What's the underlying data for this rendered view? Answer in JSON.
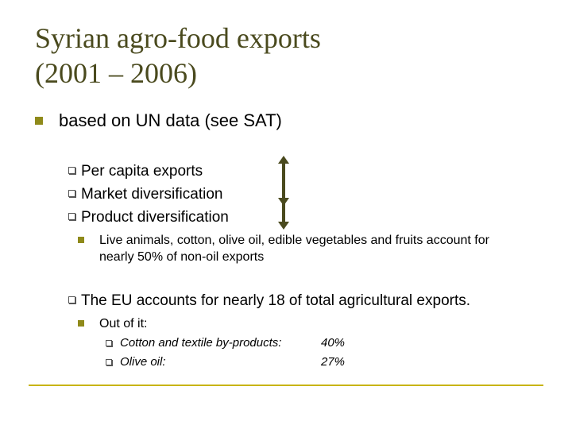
{
  "title": {
    "line1": "Syrian agro-food exports",
    "line2": "(2001 – 2006)"
  },
  "main": {
    "bullet1": "based on UN data (see SAT)",
    "sub": [
      {
        "label": "Per capita exports",
        "trend": "up"
      },
      {
        "label": "Market diversification",
        "trend": "down"
      },
      {
        "label": "Product diversification",
        "trend": "down"
      }
    ],
    "product_note": "Live animals, cotton, olive oil, edible vegetables and fruits account for nearly 50% of non-oil exports",
    "eu_line": "The EU accounts for nearly 18 of total agricultural exports.",
    "out_of_it": "Out of it:",
    "breakdown": [
      {
        "label": "Cotton and textile by-products:",
        "value": "40%"
      },
      {
        "label": "Olive oil:",
        "value": "27%"
      }
    ]
  },
  "colors": {
    "title": "#4a4a1e",
    "bullet": "#8f8a1a",
    "arrow": "#4a4a1e",
    "rule": "#c8b414"
  },
  "icons": [
    "square-bullet-icon",
    "hollow-square-bullet-icon",
    "arrow-up-icon",
    "arrow-down-icon"
  ]
}
